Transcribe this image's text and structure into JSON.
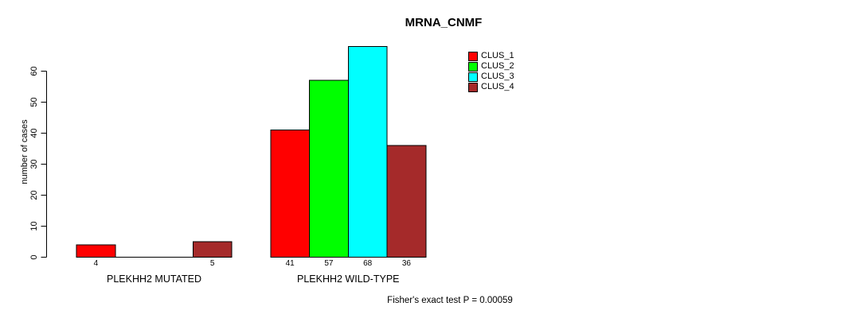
{
  "chart_data": {
    "type": "bar",
    "title": "MRNA_CNMF",
    "ylabel": "number of cases",
    "xlabel": "",
    "annotation": "Fisher's exact test P = 0.00059",
    "ylim": [
      0,
      60
    ],
    "yticks": [
      0,
      10,
      20,
      30,
      40,
      50,
      60
    ],
    "grid": false,
    "legend_position": "top-right",
    "bar_edge_color": "#000000",
    "series_colors": [
      "#FF0000",
      "#00FF00",
      "#00FFFF",
      "#A52A2A"
    ],
    "legend": [
      {
        "label": "CLUS_1",
        "color": "#FF0000"
      },
      {
        "label": "CLUS_2",
        "color": "#00FF00"
      },
      {
        "label": "CLUS_3",
        "color": "#00FFFF"
      },
      {
        "label": "CLUS_4",
        "color": "#A52A2A"
      }
    ],
    "categories": [
      "PLEKHH2 MUTATED",
      "PLEKHH2 WILD-TYPE"
    ],
    "groups": [
      {
        "label": "PLEKHH2 MUTATED",
        "values": [
          4,
          0,
          0,
          5
        ]
      },
      {
        "label": "PLEKHH2 WILD-TYPE",
        "values": [
          41,
          57,
          68,
          36
        ]
      }
    ]
  }
}
